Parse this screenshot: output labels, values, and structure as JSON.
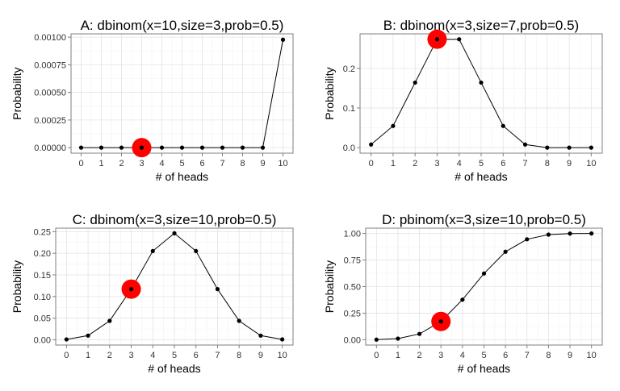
{
  "colors": {
    "panel_bg": "#ffffff",
    "grid_major": "#e3e3e3",
    "grid_minor": "#f2f2f2",
    "border": "#7f7f7f",
    "line": "#000000",
    "point": "#000000",
    "highlight": "#ff0000",
    "text": "#000000",
    "tick_text": "#333333"
  },
  "chart_data": [
    {
      "type": "line",
      "title": "A: dbinom(x=10,size=3,prob=0.5)",
      "xlabel": "# of heads",
      "ylabel": "Probability",
      "x": [
        0,
        1,
        2,
        3,
        4,
        5,
        6,
        7,
        8,
        9,
        10
      ],
      "values": [
        0,
        0,
        0,
        0,
        0,
        0,
        0,
        0,
        0,
        0,
        0.000977
      ],
      "highlight": {
        "x": 3,
        "y": 0
      },
      "xlim": [
        -0.5,
        10.5
      ],
      "ylim": [
        -5e-05,
        0.00103
      ],
      "yticks": [
        0,
        0.00025,
        0.0005,
        0.00075,
        0.001
      ],
      "ytick_labels": [
        "0.00000",
        "0.00025",
        "0.00050",
        "0.00075",
        "0.00100"
      ],
      "xticks": [
        0,
        1,
        2,
        3,
        4,
        5,
        6,
        7,
        8,
        9,
        10
      ],
      "xtick_labels": [
        "0",
        "1",
        "2",
        "3",
        "4",
        "5",
        "6",
        "7",
        "8",
        "9",
        "10"
      ],
      "grid": true
    },
    {
      "type": "line",
      "title": "B: dbinom(x=3,size=7,prob=0.5)",
      "xlabel": "# of heads",
      "ylabel": "Probability",
      "x": [
        0,
        1,
        2,
        3,
        4,
        5,
        6,
        7,
        8,
        9,
        10
      ],
      "values": [
        0.0078,
        0.0547,
        0.1641,
        0.2734,
        0.2734,
        0.1641,
        0.0547,
        0.0078,
        0,
        0,
        0
      ],
      "highlight": {
        "x": 3,
        "y": 0.2734
      },
      "xlim": [
        -0.5,
        10.5
      ],
      "ylim": [
        -0.014,
        0.287
      ],
      "yticks": [
        0,
        0.1,
        0.2
      ],
      "ytick_labels": [
        "0.0",
        "0.1",
        "0.2"
      ],
      "xticks": [
        0,
        1,
        2,
        3,
        4,
        5,
        6,
        7,
        8,
        9,
        10
      ],
      "xtick_labels": [
        "0",
        "1",
        "2",
        "3",
        "4",
        "5",
        "6",
        "7",
        "8",
        "9",
        "10"
      ],
      "grid": true
    },
    {
      "type": "line",
      "title": "C: dbinom(x=3,size=10,prob=0.5)",
      "xlabel": "# of heads",
      "ylabel": "Probability",
      "x": [
        0,
        1,
        2,
        3,
        4,
        5,
        6,
        7,
        8,
        9,
        10
      ],
      "values": [
        0.001,
        0.0098,
        0.0439,
        0.1172,
        0.2051,
        0.2461,
        0.2051,
        0.1172,
        0.0439,
        0.0098,
        0.001
      ],
      "highlight": {
        "x": 3,
        "y": 0.1172
      },
      "xlim": [
        -0.5,
        10.5
      ],
      "ylim": [
        -0.012,
        0.258
      ],
      "yticks": [
        0,
        0.05,
        0.1,
        0.15,
        0.2,
        0.25
      ],
      "ytick_labels": [
        "0.00",
        "0.05",
        "0.10",
        "0.15",
        "0.20",
        "0.25"
      ],
      "xticks": [
        0,
        1,
        2,
        3,
        4,
        5,
        6,
        7,
        8,
        9,
        10
      ],
      "xtick_labels": [
        "0",
        "1",
        "2",
        "3",
        "4",
        "5",
        "6",
        "7",
        "8",
        "9",
        "10"
      ],
      "grid": true
    },
    {
      "type": "line",
      "title": "D: pbinom(x=3,size=10,prob=0.5)",
      "xlabel": "# of heads",
      "ylabel": "Probability",
      "x": [
        0,
        1,
        2,
        3,
        4,
        5,
        6,
        7,
        8,
        9,
        10
      ],
      "values": [
        0.001,
        0.0107,
        0.0547,
        0.1719,
        0.377,
        0.623,
        0.8281,
        0.9453,
        0.9893,
        0.999,
        1.0
      ],
      "highlight": {
        "x": 3,
        "y": 0.1719
      },
      "xlim": [
        -0.5,
        10.5
      ],
      "ylim": [
        -0.05,
        1.05
      ],
      "yticks": [
        0,
        0.25,
        0.5,
        0.75,
        1.0
      ],
      "ytick_labels": [
        "0.00",
        "0.25",
        "0.50",
        "0.75",
        "1.00"
      ],
      "xticks": [
        0,
        1,
        2,
        3,
        4,
        5,
        6,
        7,
        8,
        9,
        10
      ],
      "xtick_labels": [
        "0",
        "1",
        "2",
        "3",
        "4",
        "5",
        "6",
        "7",
        "8",
        "9",
        "10"
      ],
      "grid": true
    }
  ]
}
